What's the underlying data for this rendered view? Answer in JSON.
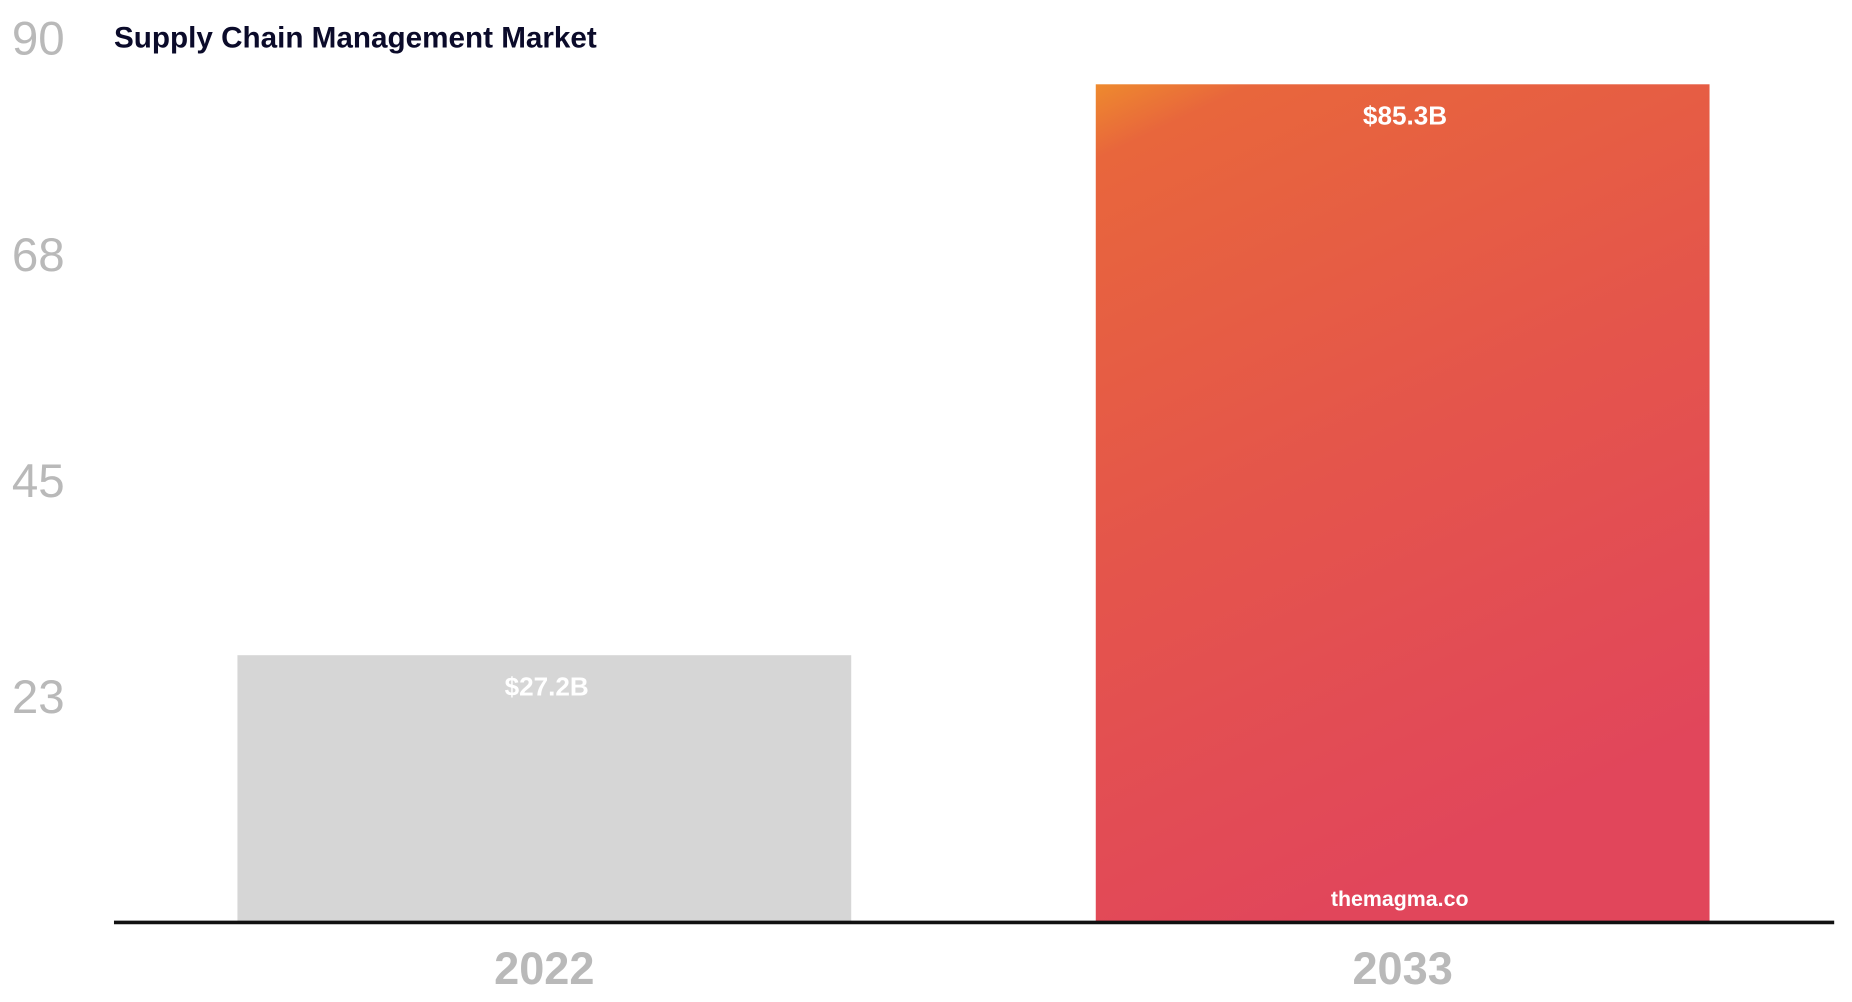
{
  "chart_data": {
    "type": "bar",
    "title": "Supply Chain Management Market",
    "categories": [
      "2022",
      "2033"
    ],
    "values": [
      27.2,
      85.3
    ],
    "data_labels": [
      "$27.2B",
      "$85.3B"
    ],
    "yticks": [
      23,
      45,
      68,
      90
    ],
    "ylim": [
      0,
      90
    ],
    "xlabel": "",
    "ylabel": "",
    "grid": false,
    "colors": [
      "#d6d6d6",
      "gradient:#ee8a2e-#e24659"
    ],
    "watermark": "themagma.co"
  }
}
